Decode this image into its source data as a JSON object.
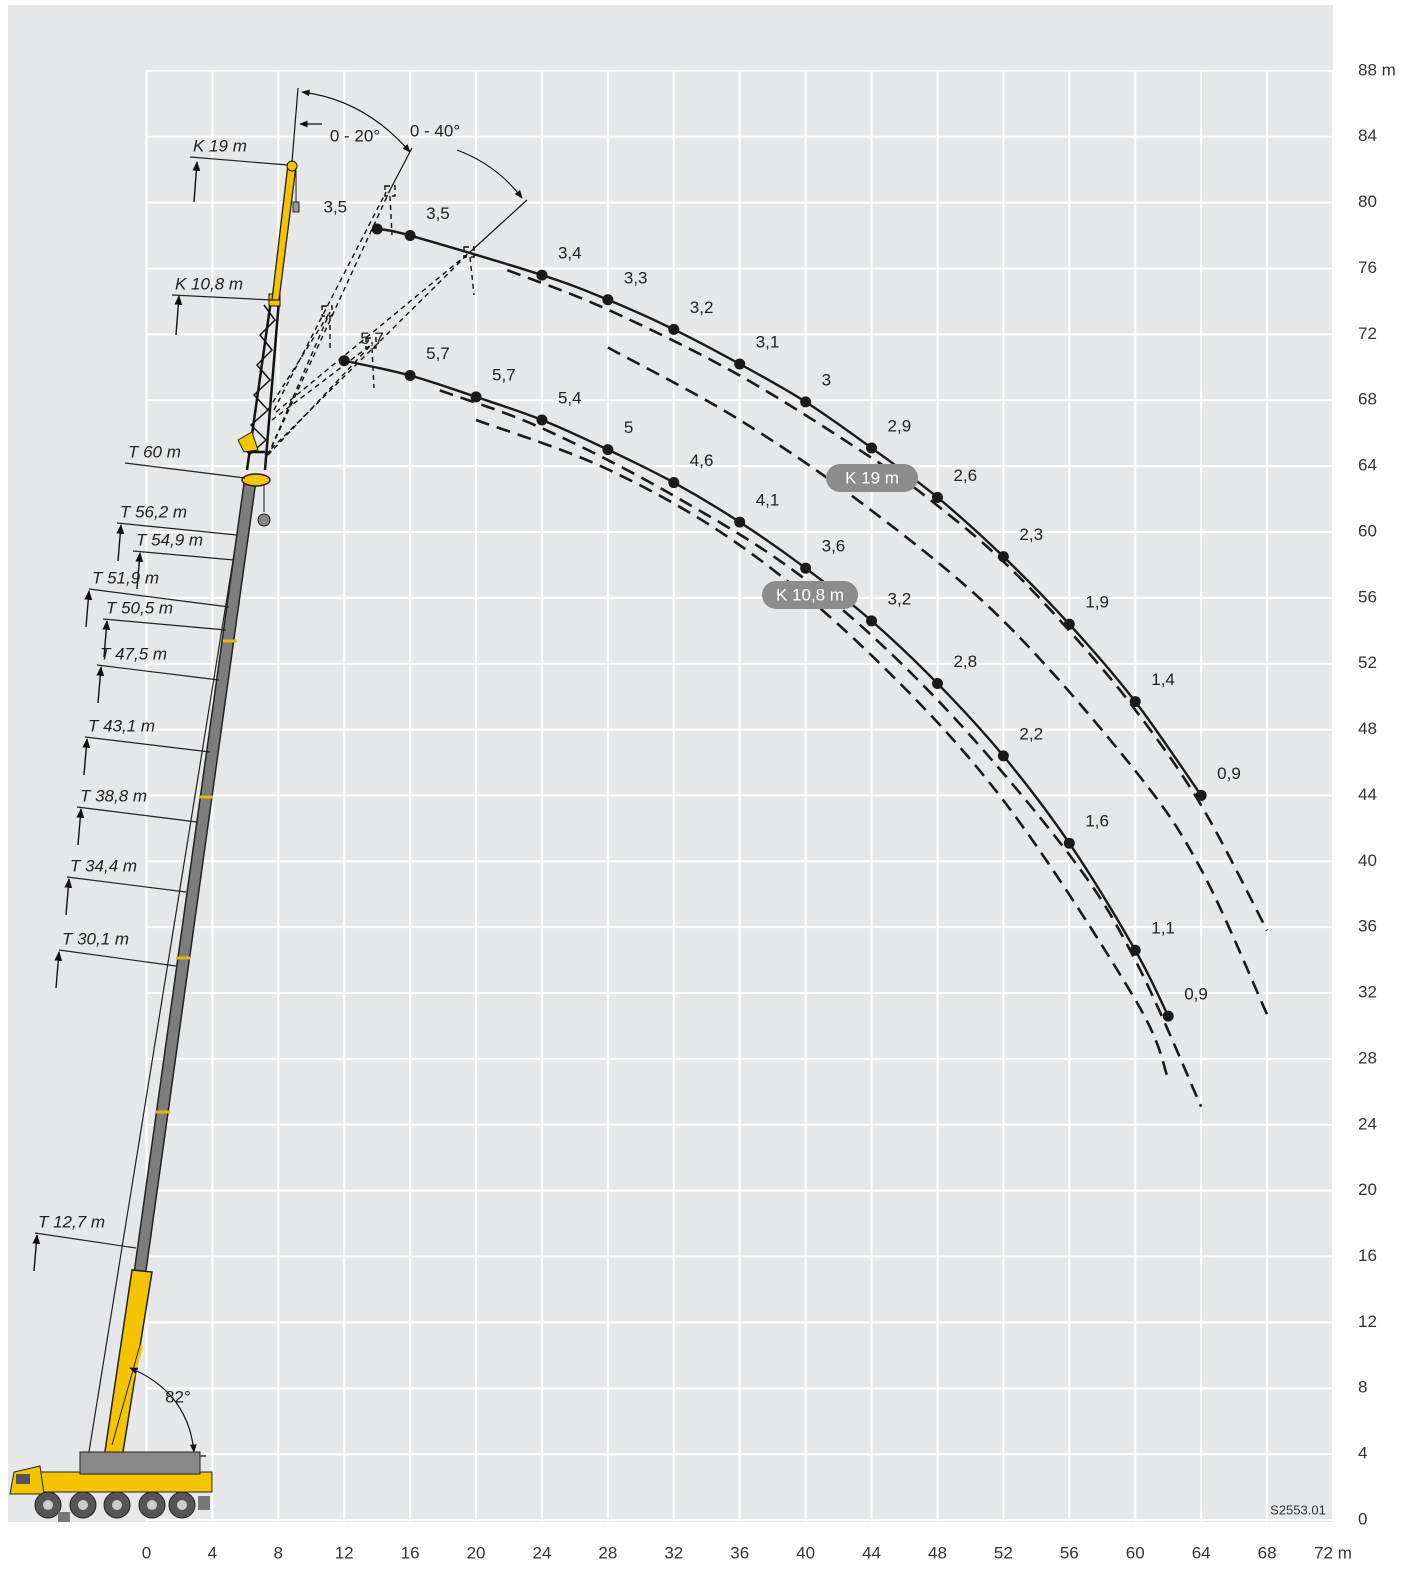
{
  "chart_data": {
    "type": "line",
    "figure_id": "S2553.01",
    "xlim": [
      -8.4,
      72
    ],
    "ylim": [
      0,
      92
    ],
    "xticks": [
      0,
      4,
      8,
      12,
      16,
      20,
      24,
      28,
      32,
      36,
      40,
      44,
      48,
      52,
      56,
      60,
      64,
      68,
      {
        "value": 72,
        "label": "72 m"
      }
    ],
    "yticks": [
      0,
      4,
      8,
      12,
      16,
      20,
      24,
      28,
      32,
      36,
      40,
      44,
      48,
      52,
      56,
      60,
      64,
      68,
      72,
      76,
      80,
      84,
      {
        "value": 88,
        "label": "88 m"
      }
    ],
    "grid": true,
    "background": "#e6e7e8",
    "series": [
      {
        "name": "K 19 m",
        "color": "#1a1a1a",
        "style": "solid",
        "x": [
          14,
          16,
          24,
          28,
          32,
          36,
          40,
          44,
          48,
          52,
          56,
          60,
          64
        ],
        "y": [
          78.4,
          78,
          75.6,
          74.1,
          72.3,
          70.2,
          67.9,
          65.1,
          62.1,
          58.5,
          54.4,
          49.7,
          44
        ],
        "point_labels": [
          "3,5",
          "3,5",
          "3,4",
          "3,3",
          "3,2",
          "3,1",
          "3",
          "2,9",
          "2,6",
          "2,3",
          "1,9",
          "1,4",
          "0,9"
        ]
      },
      {
        "name": "K 10,8 m",
        "color": "#1a1a1a",
        "style": "solid",
        "x": [
          12,
          16,
          20,
          24,
          28,
          32,
          36,
          40,
          44,
          48,
          52,
          56,
          60,
          62
        ],
        "y": [
          70.4,
          69.5,
          68.2,
          66.8,
          65,
          63,
          60.6,
          57.8,
          54.6,
          50.8,
          46.4,
          41.1,
          34.6,
          30.6
        ],
        "point_labels": [
          "5,7",
          "5,7",
          "5,7",
          "5,4",
          "5",
          "4,6",
          "4,1",
          "3,6",
          "3,2",
          "2,8",
          "2,2",
          "1,6",
          "1,1",
          "0,9"
        ]
      },
      {
        "color": "#1a1a1a",
        "style": "dashed",
        "x": [
          21.9,
          28,
          36,
          44,
          48,
          52,
          56,
          60,
          64,
          68
        ],
        "y": [
          75.9,
          73.5,
          69.5,
          64.5,
          61.6,
          58.2,
          54,
          49.2,
          43.4,
          35.8
        ]
      },
      {
        "color": "#1a1a1a",
        "style": "dashed",
        "x": [
          28,
          36,
          44,
          52,
          60,
          64,
          68
        ],
        "y": [
          71.2,
          66.8,
          61.3,
          54.6,
          45.5,
          39.5,
          30.7
        ]
      },
      {
        "color": "#1a1a1a",
        "style": "dashed",
        "x": [
          17.8,
          24,
          32,
          40,
          48,
          56,
          60,
          64
        ],
        "y": [
          68.6,
          66.3,
          62.2,
          57.1,
          49.8,
          40.4,
          34,
          25.1
        ]
      },
      {
        "color": "#1a1a1a",
        "style": "dashed",
        "x": [
          20,
          28,
          36,
          44,
          52,
          60,
          62
        ],
        "y": [
          66.8,
          63.8,
          59.2,
          52.5,
          43.7,
          31.6,
          26.8
        ]
      }
    ],
    "angle_labels": [
      "0 - 20°",
      "0 - 40°",
      "82°"
    ],
    "boom_labels": [
      "T 60 m",
      "T 56,2 m",
      "T 54,9 m",
      "T 51,9 m",
      "T 50,5 m",
      "T 47,5 m",
      "T 43,1 m",
      "T 38,8 m",
      "T 34,4 m",
      "T 30,1 m",
      "T 12,7 m"
    ]
  }
}
